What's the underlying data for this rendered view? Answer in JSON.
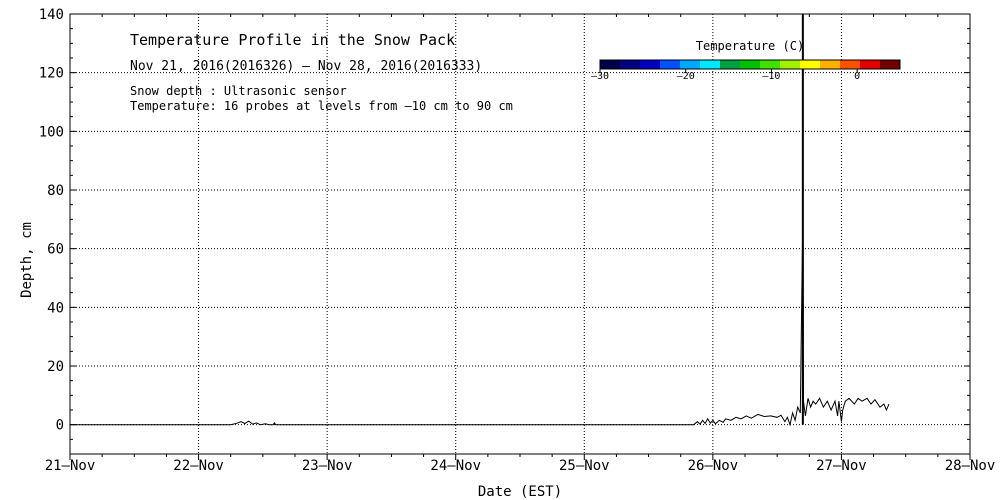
{
  "chart_data": {
    "type": "line",
    "title": "Temperature Profile in the Snow Pack",
    "subtitle": "Nov 21, 2016(2016326) – Nov 28, 2016(2016333)",
    "notes": [
      "Snow depth : Ultrasonic sensor",
      "Temperature: 16 probes at levels from –10 cm to 90 cm"
    ],
    "xlabel": "Date (EST)",
    "ylabel": "Depth, cm",
    "xlim": [
      0,
      7
    ],
    "ylim": [
      -10,
      140
    ],
    "x_ticks": [
      {
        "value": 0,
        "label": "21–Nov"
      },
      {
        "value": 1,
        "label": "22–Nov"
      },
      {
        "value": 2,
        "label": "23–Nov"
      },
      {
        "value": 3,
        "label": "24–Nov"
      },
      {
        "value": 4,
        "label": "25–Nov"
      },
      {
        "value": 5,
        "label": "26–Nov"
      },
      {
        "value": 6,
        "label": "27–Nov"
      },
      {
        "value": 7,
        "label": "28–Nov"
      }
    ],
    "y_ticks": [
      0,
      20,
      40,
      60,
      80,
      100,
      120,
      140
    ],
    "grid": true,
    "colorbar": {
      "title": "Temperature (C)",
      "min": -30,
      "max": 5,
      "ticks": [
        {
          "value": -30,
          "label": "–30"
        },
        {
          "value": -20,
          "label": "–20"
        },
        {
          "value": -10,
          "label": "–10"
        },
        {
          "value": 0,
          "label": "0"
        }
      ],
      "colors": [
        "#00004a",
        "#000080",
        "#0000c0",
        "#0050ff",
        "#00a8ff",
        "#00e8ff",
        "#00a040",
        "#00c000",
        "#40e000",
        "#a0f000",
        "#ffff00",
        "#ffb000",
        "#ff5000",
        "#e00000",
        "#700000"
      ]
    },
    "series": [
      {
        "color": "#000000",
        "points": [
          [
            0.0,
            0
          ],
          [
            1.25,
            0
          ],
          [
            1.3,
            0.5
          ],
          [
            1.33,
            1
          ],
          [
            1.36,
            0.4
          ],
          [
            1.39,
            1.2
          ],
          [
            1.42,
            0.2
          ],
          [
            1.45,
            0.6
          ],
          [
            1.48,
            0
          ],
          [
            1.52,
            0.3
          ],
          [
            1.55,
            0
          ],
          [
            1.58,
            0
          ],
          [
            1.59,
            0.6
          ],
          [
            1.6,
            0
          ],
          [
            4.85,
            0
          ],
          [
            4.88,
            1
          ],
          [
            4.9,
            0.2
          ],
          [
            4.92,
            1.5
          ],
          [
            4.94,
            0.4
          ],
          [
            4.96,
            2
          ],
          [
            4.98,
            0.5
          ],
          [
            5.0,
            1.5
          ],
          [
            5.02,
            0.3
          ],
          [
            5.05,
            1.5
          ],
          [
            5.08,
            0.8
          ],
          [
            5.1,
            2
          ],
          [
            5.14,
            1.5
          ],
          [
            5.18,
            2.5
          ],
          [
            5.22,
            2
          ],
          [
            5.26,
            3
          ],
          [
            5.3,
            2.2
          ],
          [
            5.35,
            3.5
          ],
          [
            5.4,
            2.8
          ],
          [
            5.45,
            3
          ],
          [
            5.5,
            2.5
          ],
          [
            5.53,
            3.2
          ],
          [
            5.56,
            1
          ],
          [
            5.58,
            2.5
          ],
          [
            5.6,
            0
          ],
          [
            5.62,
            4
          ],
          [
            5.64,
            1.5
          ],
          [
            5.66,
            6
          ],
          [
            5.68,
            4
          ],
          [
            5.7,
            74
          ],
          [
            5.705,
            8
          ],
          [
            5.72,
            3
          ],
          [
            5.74,
            9
          ],
          [
            5.76,
            6
          ],
          [
            5.78,
            8
          ],
          [
            5.8,
            7
          ],
          [
            5.83,
            9
          ],
          [
            5.86,
            6
          ],
          [
            5.89,
            8
          ],
          [
            5.92,
            5
          ],
          [
            5.95,
            8
          ],
          [
            5.97,
            3
          ],
          [
            5.98,
            8
          ],
          [
            6.0,
            1
          ],
          [
            6.01,
            5
          ],
          [
            6.03,
            8
          ],
          [
            6.06,
            9
          ],
          [
            6.1,
            7
          ],
          [
            6.13,
            9
          ],
          [
            6.16,
            8
          ],
          [
            6.2,
            9
          ],
          [
            6.23,
            7
          ],
          [
            6.26,
            8.5
          ],
          [
            6.3,
            6
          ],
          [
            6.33,
            7
          ],
          [
            6.35,
            5
          ],
          [
            6.37,
            7
          ]
        ]
      }
    ],
    "vertical_marker": {
      "x": 5.7,
      "color": "#000000"
    }
  }
}
